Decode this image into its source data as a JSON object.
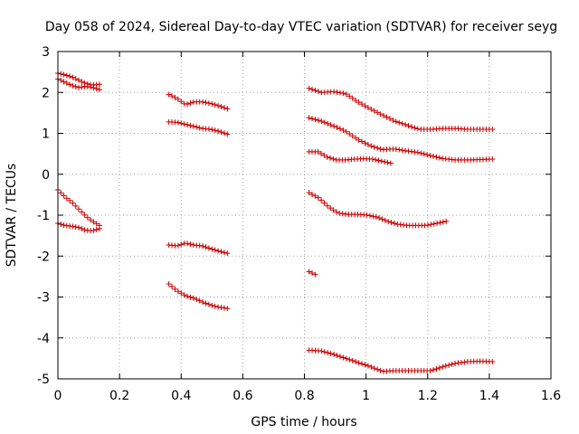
{
  "chart_data": {
    "type": "scatter",
    "title": "Day 058 of 2024, Sidereal Day-to-day VTEC variation (SDTVAR) for receiver seyg",
    "xlabel": "GPS time / hours",
    "ylabel": "SDTVAR / TECUs",
    "xlim": [
      0,
      1.6
    ],
    "ylim": [
      -5,
      3
    ],
    "xticks": [
      0,
      0.2,
      0.4,
      0.6,
      0.8,
      1,
      1.2,
      1.4,
      1.6
    ],
    "xtick_labels": [
      "0",
      "0.2",
      "0.4",
      "0.6",
      "0.8",
      "1",
      "1.2",
      "1.4",
      "1.6"
    ],
    "yticks": [
      -5,
      -4,
      -3,
      -2,
      -1,
      0,
      1,
      2,
      3
    ],
    "ytick_labels": [
      "-5",
      "-4",
      "-3",
      "-2",
      "-1",
      "0",
      "1",
      "2",
      "3"
    ],
    "grid": true,
    "marker": "+",
    "color": "#cc0000",
    "series": [
      {
        "name": "a1",
        "x_start": 0.0,
        "x_end": 0.135,
        "y": [
          2.47,
          2.43,
          2.38,
          2.3,
          2.22,
          2.18,
          2.2
        ]
      },
      {
        "name": "a2",
        "x_start": 0.0,
        "x_end": 0.135,
        "y": [
          2.33,
          2.25,
          2.17,
          2.12,
          2.15,
          2.12,
          2.07
        ]
      },
      {
        "name": "a3",
        "x_start": 0.0,
        "x_end": 0.135,
        "y": [
          -0.38,
          -0.55,
          -0.68,
          -0.85,
          -1.02,
          -1.15,
          -1.25
        ]
      },
      {
        "name": "a4",
        "x_start": 0.0,
        "x_end": 0.135,
        "y": [
          -1.2,
          -1.25,
          -1.27,
          -1.3,
          -1.37,
          -1.38,
          -1.33
        ]
      },
      {
        "name": "b1",
        "x_start": 0.36,
        "x_end": 0.55,
        "y": [
          1.95,
          1.85,
          1.7,
          1.77,
          1.77,
          1.73,
          1.67,
          1.6
        ]
      },
      {
        "name": "b2",
        "x_start": 0.36,
        "x_end": 0.55,
        "y": [
          1.28,
          1.27,
          1.22,
          1.17,
          1.12,
          1.1,
          1.05,
          0.98
        ]
      },
      {
        "name": "b3",
        "x_start": 0.36,
        "x_end": 0.55,
        "y": [
          -1.73,
          -1.75,
          -1.68,
          -1.73,
          -1.75,
          -1.82,
          -1.88,
          -1.93
        ]
      },
      {
        "name": "b4",
        "x_start": 0.36,
        "x_end": 0.55,
        "y": [
          -2.68,
          -2.85,
          -2.97,
          -3.03,
          -3.12,
          -3.2,
          -3.25,
          -3.28
        ]
      },
      {
        "name": "c1",
        "x_start": 0.815,
        "x_end": 1.41,
        "y": [
          2.1,
          2.0,
          2.02,
          1.97,
          1.77,
          1.6,
          1.45,
          1.3,
          1.2,
          1.1,
          1.1,
          1.12,
          1.12,
          1.1,
          1.1,
          1.1
        ]
      },
      {
        "name": "c2",
        "x_start": 0.815,
        "x_end": 1.41,
        "y": [
          1.38,
          1.3,
          1.18,
          1.05,
          0.85,
          0.7,
          0.6,
          0.62,
          0.57,
          0.53,
          0.45,
          0.38,
          0.35,
          0.35,
          0.36,
          0.37
        ]
      },
      {
        "name": "c3",
        "x_start": 0.815,
        "x_end": 1.08,
        "y": [
          0.55,
          0.55,
          0.42,
          0.35,
          0.35,
          0.37,
          0.38,
          0.37,
          0.32,
          0.27
        ]
      },
      {
        "name": "c4",
        "x_start": 0.815,
        "x_end": 1.26,
        "y": [
          -0.45,
          -0.58,
          -0.8,
          -0.95,
          -0.98,
          -0.98,
          -1.0,
          -1.05,
          -1.15,
          -1.22,
          -1.25,
          -1.25,
          -1.25,
          -1.2,
          -1.15
        ]
      },
      {
        "name": "c5",
        "x_start": 0.815,
        "x_end": 0.835,
        "y": [
          -2.38,
          -2.45
        ]
      },
      {
        "name": "c6",
        "x_start": 0.815,
        "x_end": 1.41,
        "y": [
          -4.3,
          -4.32,
          -4.4,
          -4.5,
          -4.6,
          -4.7,
          -4.82,
          -4.8,
          -4.8,
          -4.8,
          -4.8,
          -4.7,
          -4.62,
          -4.58,
          -4.57,
          -4.58
        ]
      }
    ]
  }
}
